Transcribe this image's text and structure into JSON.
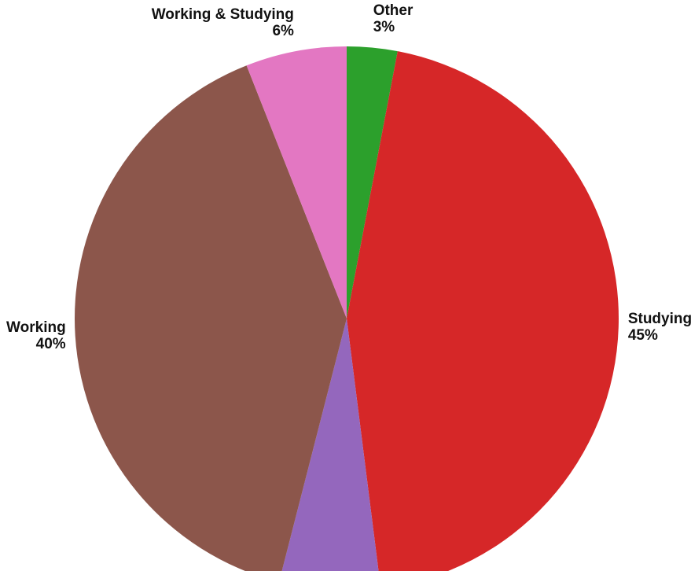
{
  "chart_data": {
    "type": "pie",
    "title": "",
    "slices": [
      {
        "label": "Other",
        "value": 3,
        "value_label": "3%",
        "color": "#2ca02c",
        "label_anchor": "start"
      },
      {
        "label": "Studying",
        "value": 45,
        "value_label": "45%",
        "color": "#d62728",
        "label_anchor": "start"
      },
      {
        "label": "",
        "value": 6,
        "value_label": "",
        "color": "#9467bd",
        "label_anchor": "middle"
      },
      {
        "label": "Working",
        "value": 40,
        "value_label": "40%",
        "color": "#8c564b",
        "label_anchor": "end"
      },
      {
        "label": "Working & Studying",
        "value": 6,
        "value_label": "6%",
        "color": "#e377c2",
        "label_anchor": "end"
      }
    ],
    "start_angle": "12 o'clock",
    "direction": "clockwise",
    "legend": "none",
    "cropped": "bottom"
  }
}
